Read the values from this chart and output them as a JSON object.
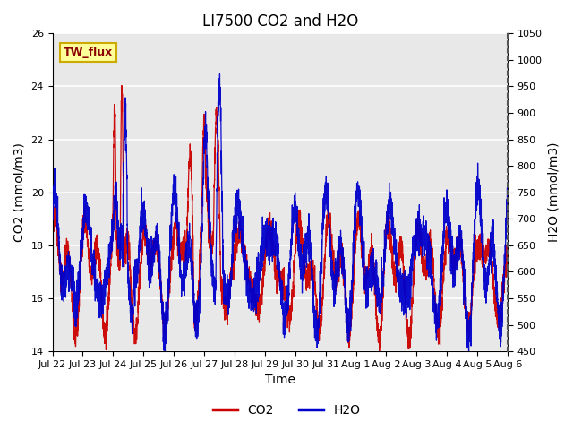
{
  "title": "LI7500 CO2 and H2O",
  "xlabel": "Time",
  "ylabel_left": "CO2 (mmol/m3)",
  "ylabel_right": "H2O (mmol/m3)",
  "ylim_left": [
    14,
    26
  ],
  "ylim_right": [
    450,
    1050
  ],
  "yticks_left": [
    14,
    16,
    18,
    20,
    22,
    24,
    26
  ],
  "yticks_right": [
    450,
    500,
    550,
    600,
    650,
    700,
    750,
    800,
    850,
    900,
    950,
    1000,
    1050
  ],
  "xtick_labels": [
    "Jul 22",
    "Jul 23",
    "Jul 24",
    "Jul 25",
    "Jul 26",
    "Jul 27",
    "Jul 28",
    "Jul 29",
    "Jul 30",
    "Jul 31",
    "Aug 1",
    "Aug 2",
    "Aug 3",
    "Aug 4",
    "Aug 5",
    "Aug 6"
  ],
  "legend_label_co2": "CO2",
  "legend_label_h2o": "H2O",
  "co2_color": "#cc0000",
  "h2o_color": "#0000cc",
  "annotation_text": "TW_flux",
  "annotation_bg": "#ffff99",
  "annotation_border": "#ccaa00",
  "bg_color": "#e8e8e8",
  "title_fontsize": 12,
  "axis_fontsize": 10,
  "tick_fontsize": 8,
  "legend_fontsize": 10,
  "grid_color": "#ffffff",
  "num_points": 4000,
  "seed": 42
}
